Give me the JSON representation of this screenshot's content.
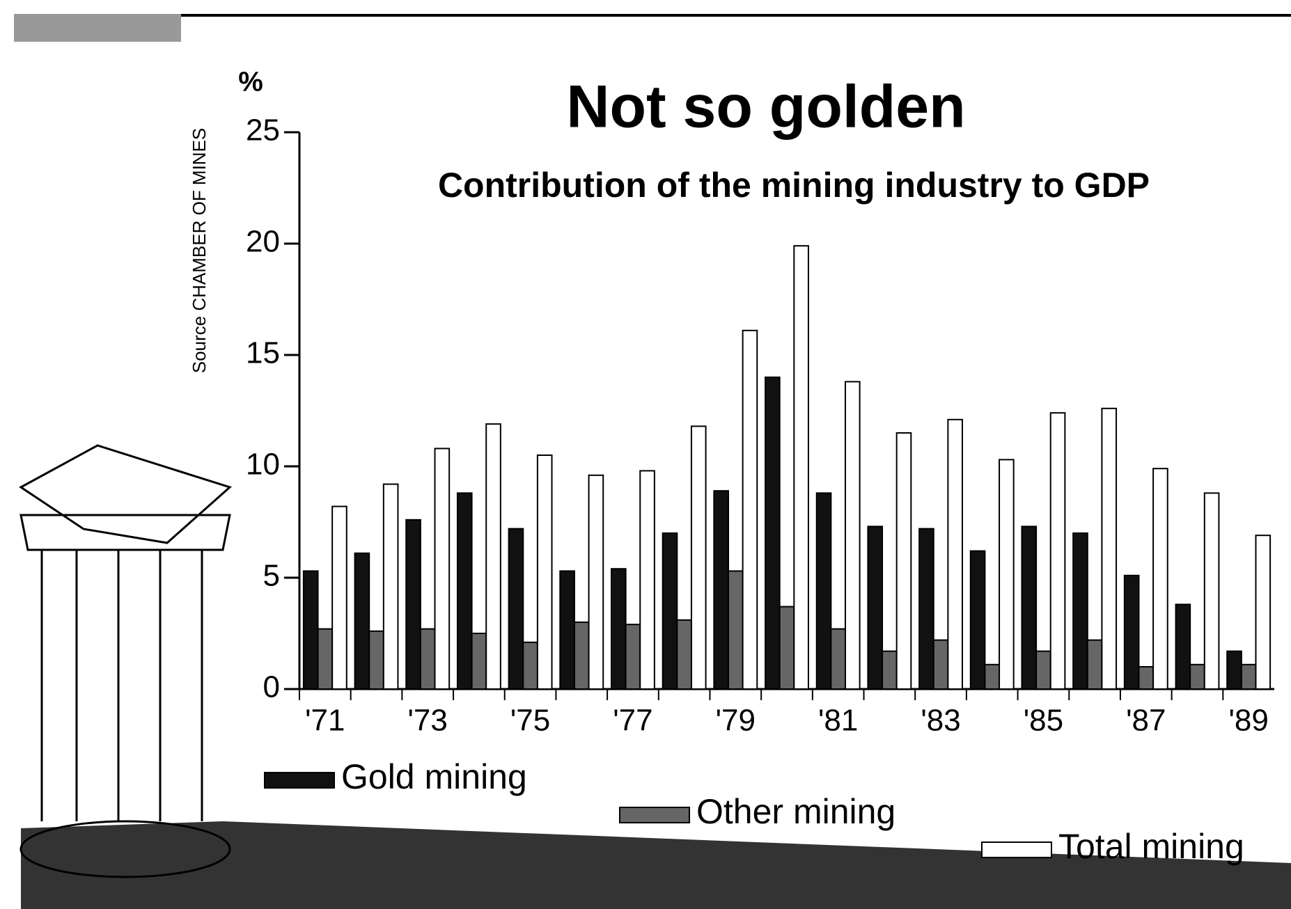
{
  "chart_data": {
    "type": "bar",
    "title": "Not so golden",
    "subtitle": "Contribution of the mining industry to GDP",
    "y_label": "%",
    "source": "Source CHAMBER OF MINES",
    "categories": [
      "'71",
      null,
      "'73",
      null,
      "'75",
      null,
      "'77",
      null,
      "'79",
      null,
      "'81",
      null,
      "'83",
      null,
      "'85",
      null,
      "'87",
      null,
      "'89"
    ],
    "series": [
      {
        "name": "Gold mining",
        "color": "#111111",
        "values": [
          5.3,
          6.1,
          7.6,
          8.8,
          7.2,
          5.3,
          5.4,
          7.0,
          8.9,
          14.0,
          8.8,
          7.3,
          7.2,
          6.2,
          7.3,
          7.0,
          5.1,
          3.8,
          1.7
        ]
      },
      {
        "name": "Other mining",
        "color": "#666666",
        "values": [
          2.7,
          2.6,
          2.7,
          2.5,
          2.1,
          3.0,
          2.9,
          3.1,
          5.3,
          3.7,
          2.7,
          1.7,
          2.2,
          1.1,
          1.7,
          2.2,
          1.0,
          1.1,
          1.1
        ]
      },
      {
        "name": "Total mining",
        "color": "#ffffff",
        "values": [
          8.2,
          9.2,
          10.8,
          11.9,
          10.5,
          9.6,
          9.8,
          11.8,
          16.1,
          19.9,
          13.8,
          11.5,
          12.1,
          10.3,
          12.4,
          12.6,
          9.9,
          8.8,
          6.9
        ]
      }
    ],
    "ylim": [
      0,
      25
    ],
    "yticks": [
      0,
      5,
      10,
      15,
      20,
      25
    ],
    "grid": false
  }
}
